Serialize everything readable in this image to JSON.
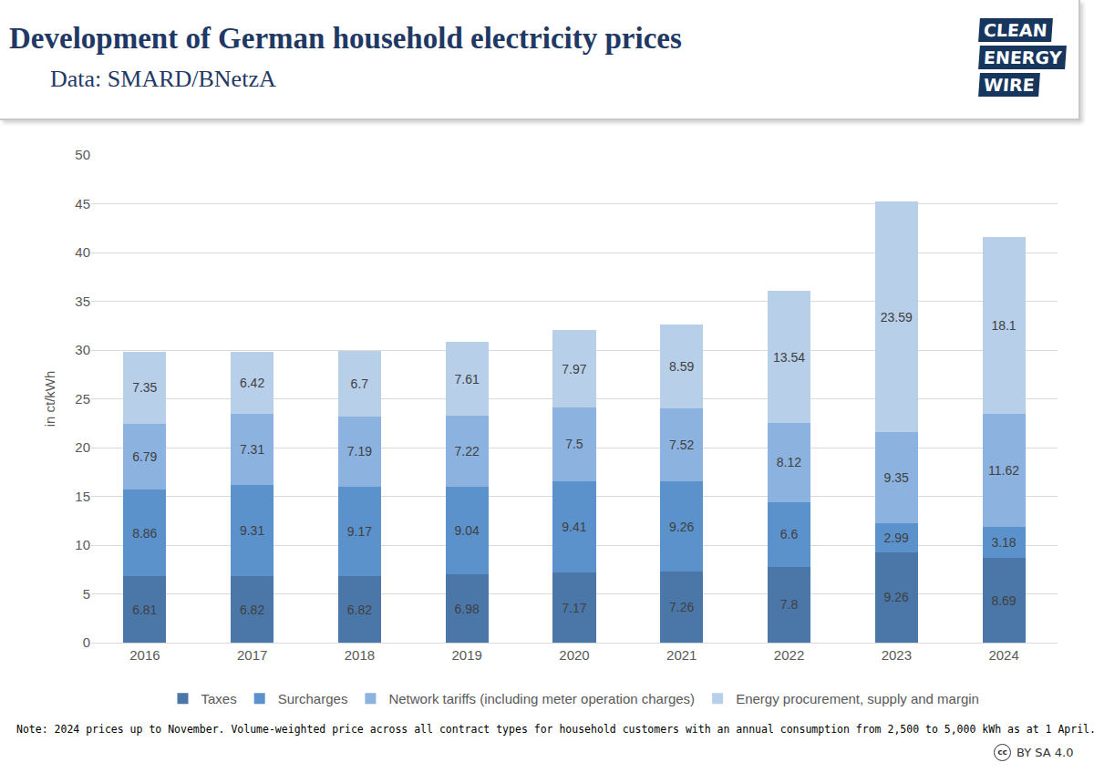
{
  "chart_data": {
    "type": "bar",
    "title": "Development of German household electricity prices",
    "subtitle": "Data: SMARD/BNetzA",
    "y_label": "in ct/kWh",
    "note": "Note: 2024 prices up to November. Volume-weighted price across all contract types for household customers with an annual consumption from 2,500 to 5,000 kWh as at 1 April.",
    "logo": [
      "CLEAN",
      "ENERGY",
      "WIRE"
    ],
    "license_icon": "cc",
    "license": "BY SA 4.0",
    "categories": [
      "2016",
      "2017",
      "2018",
      "2019",
      "2020",
      "2021",
      "2022",
      "2023",
      "2024"
    ],
    "series": [
      {
        "name": "Taxes",
        "color": "#4a77a8",
        "values": [
          6.81,
          6.82,
          6.82,
          6.98,
          7.17,
          7.26,
          7.8,
          9.26,
          8.69
        ]
      },
      {
        "name": "Surcharges",
        "color": "#5b92cc",
        "values": [
          8.86,
          9.31,
          9.17,
          9.04,
          9.41,
          9.26,
          6.6,
          2.99,
          3.18
        ]
      },
      {
        "name": "Network tariffs (including meter operation charges)",
        "color": "#8cb2e0",
        "values": [
          6.79,
          7.31,
          7.19,
          7.22,
          7.5,
          7.52,
          8.12,
          9.35,
          11.62
        ]
      },
      {
        "name": "Energy procurement, supply and margin",
        "color": "#b8cfe9",
        "values": [
          7.35,
          6.42,
          6.7,
          7.61,
          7.97,
          8.59,
          13.54,
          23.59,
          18.1
        ]
      }
    ],
    "stacked": true,
    "data_labels": true,
    "ylim": [
      0,
      50
    ],
    "yticks": [
      0,
      5,
      10,
      15,
      20,
      25,
      30,
      35,
      40,
      45,
      50
    ],
    "grid": true,
    "legend": "bottom"
  }
}
